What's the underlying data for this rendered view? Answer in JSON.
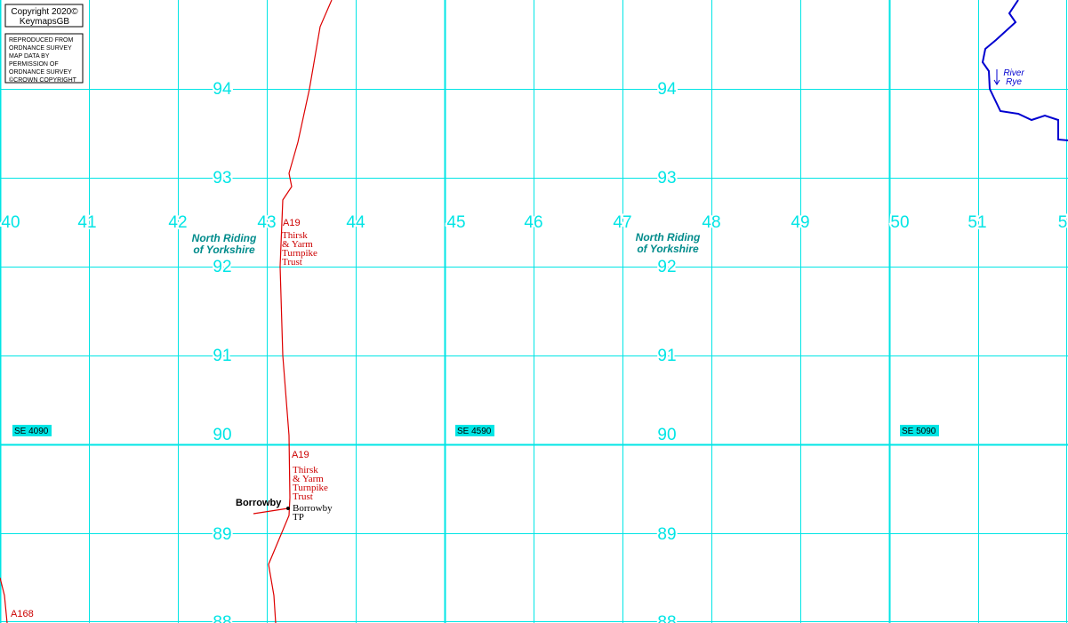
{
  "copyright": {
    "line1": "Copyright 2020©",
    "line2": "KeymapsGB"
  },
  "licence": [
    "REPRODUCED FROM",
    "ORDNANCE SURVEY",
    "MAP DATA BY",
    "PERMISSION OF",
    "ORDNANCE SURVEY",
    "©CROWN COPYRIGHT"
  ],
  "eastings": [
    "40",
    "41",
    "42",
    "43",
    "44",
    "45",
    "46",
    "47",
    "48",
    "49",
    "50",
    "51",
    "5"
  ],
  "northings_left": [
    "94",
    "93",
    "92",
    "91",
    "90",
    "89",
    "88"
  ],
  "northings_right": [
    "94",
    "93",
    "92",
    "91",
    "90",
    "89",
    "88"
  ],
  "squares": [
    "SE 4090",
    "SE 4590",
    "SE 5090"
  ],
  "regions": [
    {
      "line1": "North Riding",
      "line2": "of Yorkshire"
    },
    {
      "line1": "North Riding",
      "line2": "of Yorkshire"
    }
  ],
  "roads": {
    "a19_top": "A19",
    "trust_top": [
      "Thirsk",
      "& Yarm",
      "Turnpike",
      "Trust"
    ],
    "a19_bottom": "A19",
    "trust_bottom": [
      "Thirsk",
      "& Yarm",
      "Turnpike",
      "Trust"
    ],
    "a168": "A168"
  },
  "places": {
    "village": "Borrowby",
    "tollpoint": [
      "Borrowby",
      "TP"
    ]
  },
  "river": {
    "line1": "River",
    "line2": "Rye"
  }
}
